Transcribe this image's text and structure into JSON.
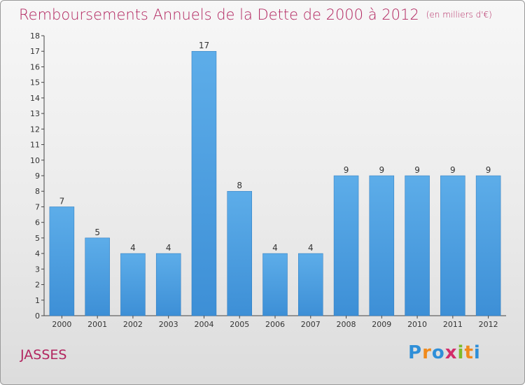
{
  "chart_data": {
    "type": "bar",
    "title": "Remboursements Annuels de la Dette de 2000 à 2012",
    "subtitle": "(en milliers d'€)",
    "categories": [
      "2000",
      "2001",
      "2002",
      "2003",
      "2004",
      "2005",
      "2006",
      "2007",
      "2008",
      "2009",
      "2010",
      "2011",
      "2012"
    ],
    "values": [
      7,
      5,
      4,
      4,
      17,
      8,
      4,
      4,
      9,
      9,
      9,
      9,
      9
    ],
    "ylim": [
      0,
      18
    ],
    "yticks": [
      0,
      1,
      2,
      3,
      4,
      5,
      6,
      7,
      8,
      9,
      10,
      11,
      12,
      13,
      14,
      15,
      16,
      17,
      18
    ],
    "grid": false,
    "bar_color": "#3d8fd6",
    "title_color": "#b2255f"
  },
  "footer": {
    "town": "JASSES",
    "logo_letters": [
      {
        "ch": "P",
        "color": "#2f8fd8"
      },
      {
        "ch": "r",
        "color": "#f08a1c"
      },
      {
        "ch": "o",
        "color": "#2f8fd8"
      },
      {
        "ch": "x",
        "color": "#d22d6a"
      },
      {
        "ch": "i",
        "color": "#7fba2a"
      },
      {
        "ch": "t",
        "color": "#f08a1c"
      },
      {
        "ch": "i",
        "color": "#2f8fd8"
      }
    ]
  }
}
